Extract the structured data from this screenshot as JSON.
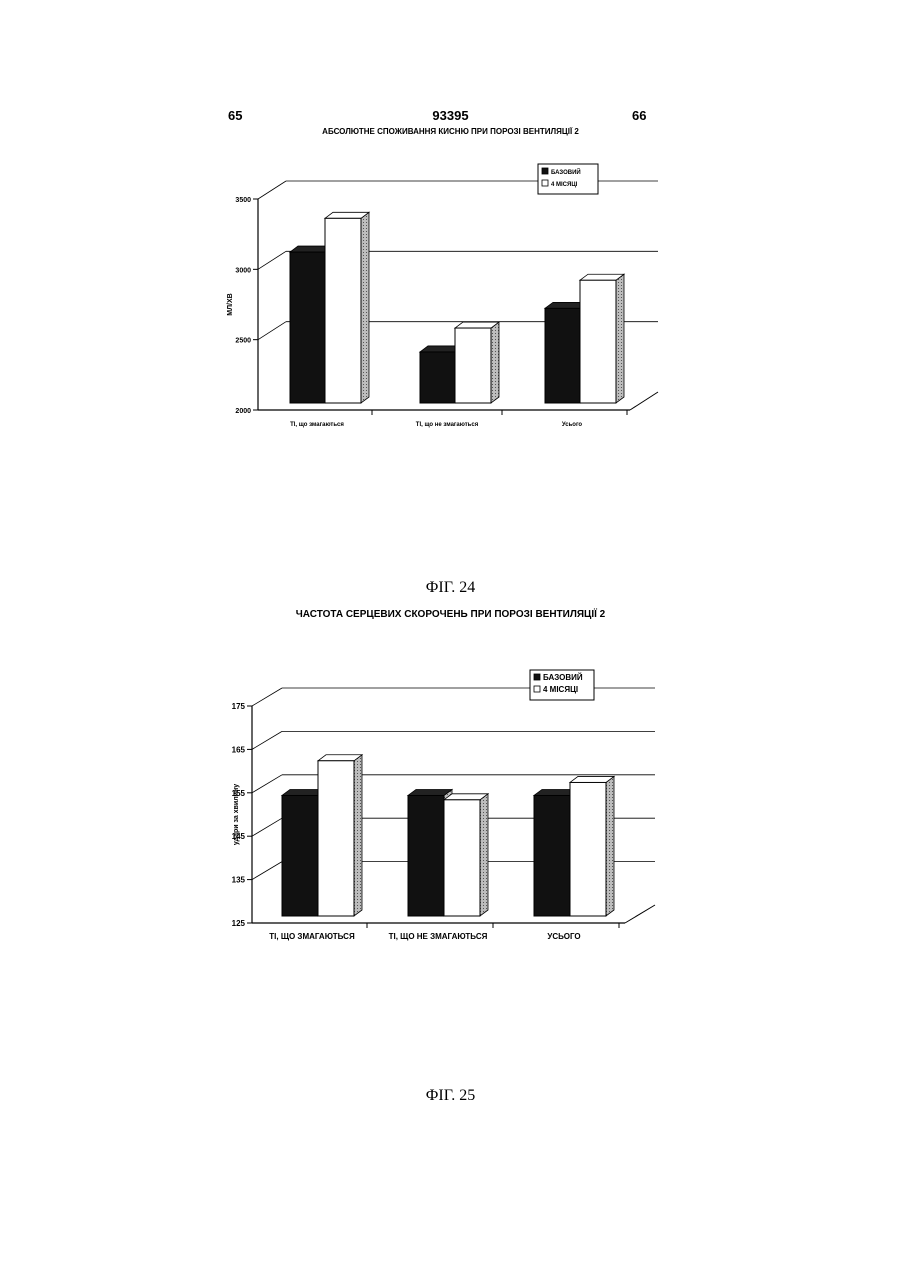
{
  "header": {
    "page_left": "65",
    "doc_number": "93395",
    "page_right": "66"
  },
  "charts": [
    {
      "title": "АБСОЛЮТНЕ СПОЖИВАННЯ КИСНЮ ПРИ ПОРОЗІ ВЕНТИЛЯЦІЇ 2",
      "figure_caption": "ФІГ. 24",
      "chart_data": {
        "type": "bar",
        "title": "АБСОЛЮТНЕ СПОЖИВАННЯ КИСНЮ ПРИ ПОРОЗІ ВЕНТИЛЯЦІЇ 2",
        "ylabel": "МЛ/ХВ",
        "xlabel": "",
        "ylim": [
          2000,
          3500
        ],
        "yticks": [
          "2000",
          "2500",
          "3000",
          "3500"
        ],
        "categories": [
          "ТІ, що змагаються",
          "ТІ, що не змагаються",
          "Усього"
        ],
        "series": [
          {
            "name": "БАЗОВИЙ",
            "values": [
              3080,
              2370,
              2680
            ],
            "color": "#111111"
          },
          {
            "name": "4 МІСЯЦІ",
            "values": [
              3320,
              2540,
              2880
            ],
            "color": "#ffffff"
          }
        ],
        "legend": "top-right",
        "grid": true
      }
    },
    {
      "title": "ЧАСТОТА СЕРЦЕВИХ СКОРОЧЕНЬ ПРИ ПОРОЗІ ВЕНТИЛЯЦІЇ 2",
      "figure_caption": "ФІГ. 25",
      "chart_data": {
        "type": "bar",
        "title": "ЧАСТОТА СЕРЦЕВИХ СКОРОЧЕНЬ ПРИ ПОРОЗІ ВЕНТИЛЯЦІЇ 2",
        "ylabel": "удари за хвилину",
        "xlabel": "",
        "ylim": [
          125,
          175
        ],
        "yticks": [
          "125",
          "135",
          "145",
          "155",
          "165",
          "175"
        ],
        "categories": [
          "ТІ, ЩО ЗМАГАЮТЬСЯ",
          "ТІ, ЩО НЕ ЗМАГАЮТЬСЯ",
          "УСЬОГО"
        ],
        "series": [
          {
            "name": "БАЗОВИЙ",
            "values": [
              153,
              153,
              153
            ],
            "color": "#111111"
          },
          {
            "name": "4 МІСЯЦІ",
            "values": [
              161,
              152,
              156
            ],
            "color": "#ffffff"
          }
        ],
        "legend": "top-right",
        "grid": true
      }
    }
  ]
}
